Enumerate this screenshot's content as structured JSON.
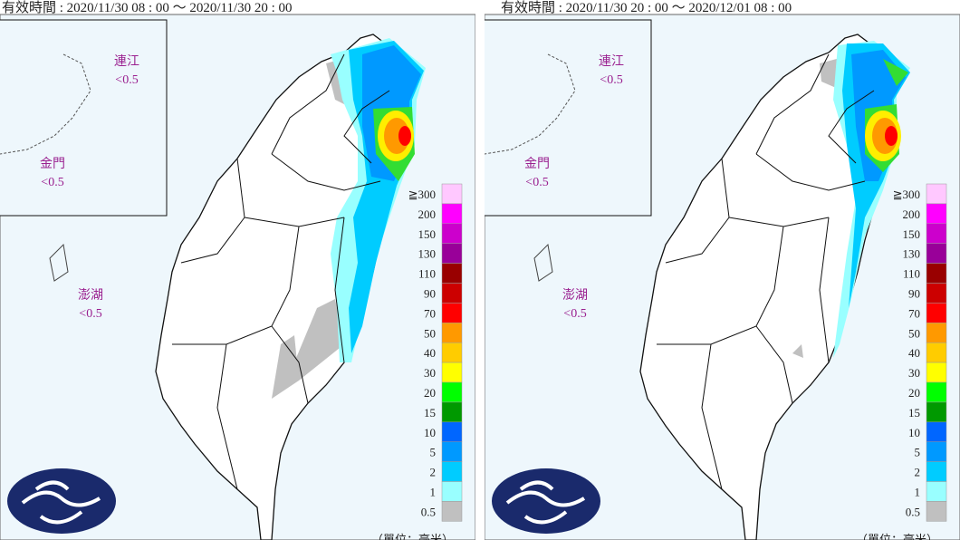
{
  "panels": [
    {
      "valid_time": "有效時間 : 2020/11/30 08 : 00 ～ 2020/11/30 20 : 00",
      "islands": [
        {
          "name": "連江",
          "value": "<0.5"
        },
        {
          "name": "金門",
          "value": "<0.5"
        },
        {
          "name": "澎湖",
          "value": "<0.5"
        }
      ]
    },
    {
      "valid_time": "有效時間 : 2020/11/30 20 : 00 ～ 2020/12/01 08 : 00",
      "islands": [
        {
          "name": "連江",
          "value": "<0.5"
        },
        {
          "name": "金門",
          "value": "<0.5"
        },
        {
          "name": "澎湖",
          "value": "<0.5"
        }
      ]
    }
  ],
  "legend": {
    "unit": "（單位：毫米）",
    "items": [
      {
        "label": "≧300",
        "color": "#ffc8ff"
      },
      {
        "label": "200",
        "color": "#ff00ff"
      },
      {
        "label": "150",
        "color": "#cc00cc"
      },
      {
        "label": "130",
        "color": "#990099"
      },
      {
        "label": "110",
        "color": "#990000"
      },
      {
        "label": "90",
        "color": "#cc0000"
      },
      {
        "label": "70",
        "color": "#ff0000"
      },
      {
        "label": "50",
        "color": "#ff9900"
      },
      {
        "label": "40",
        "color": "#ffcc00"
      },
      {
        "label": "30",
        "color": "#ffff00"
      },
      {
        "label": "20",
        "color": "#00ff00"
      },
      {
        "label": "15",
        "color": "#009900"
      },
      {
        "label": "10",
        "color": "#0066ff"
      },
      {
        "label": "5",
        "color": "#0099ff"
      },
      {
        "label": "2",
        "color": "#00ccff"
      },
      {
        "label": "1",
        "color": "#99ffff"
      },
      {
        "label": "0.5",
        "color": "#c0c0c0"
      }
    ]
  }
}
